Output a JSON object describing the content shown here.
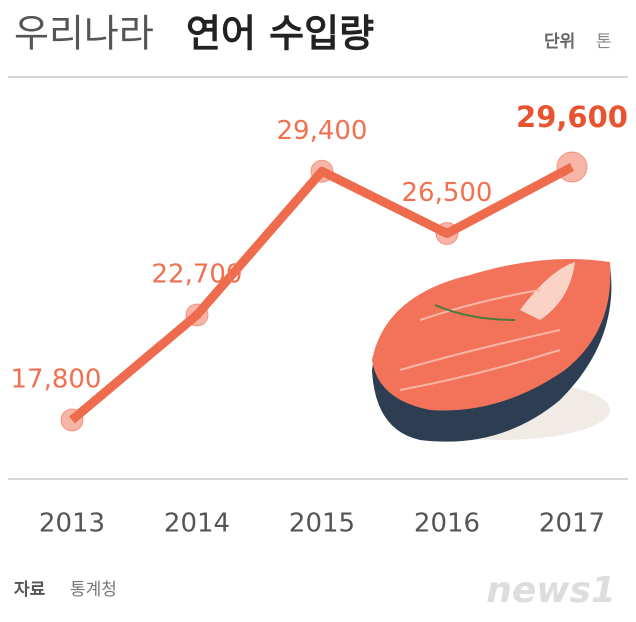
{
  "title_light": "우리나라",
  "title_bold": "연어 수입량",
  "unit_label": "단위",
  "unit": "톤",
  "source_label": "자료",
  "source": "통계청",
  "logo": "news1",
  "chart_data": {
    "type": "line",
    "categories": [
      "2013",
      "2014",
      "2015",
      "2016",
      "2017"
    ],
    "values": [
      17800,
      22700,
      29400,
      26500,
      29600
    ],
    "value_labels": [
      "17,800",
      "22,700",
      "29,400",
      "26,500",
      "29,600"
    ],
    "color": "#ee6b4d"
  }
}
